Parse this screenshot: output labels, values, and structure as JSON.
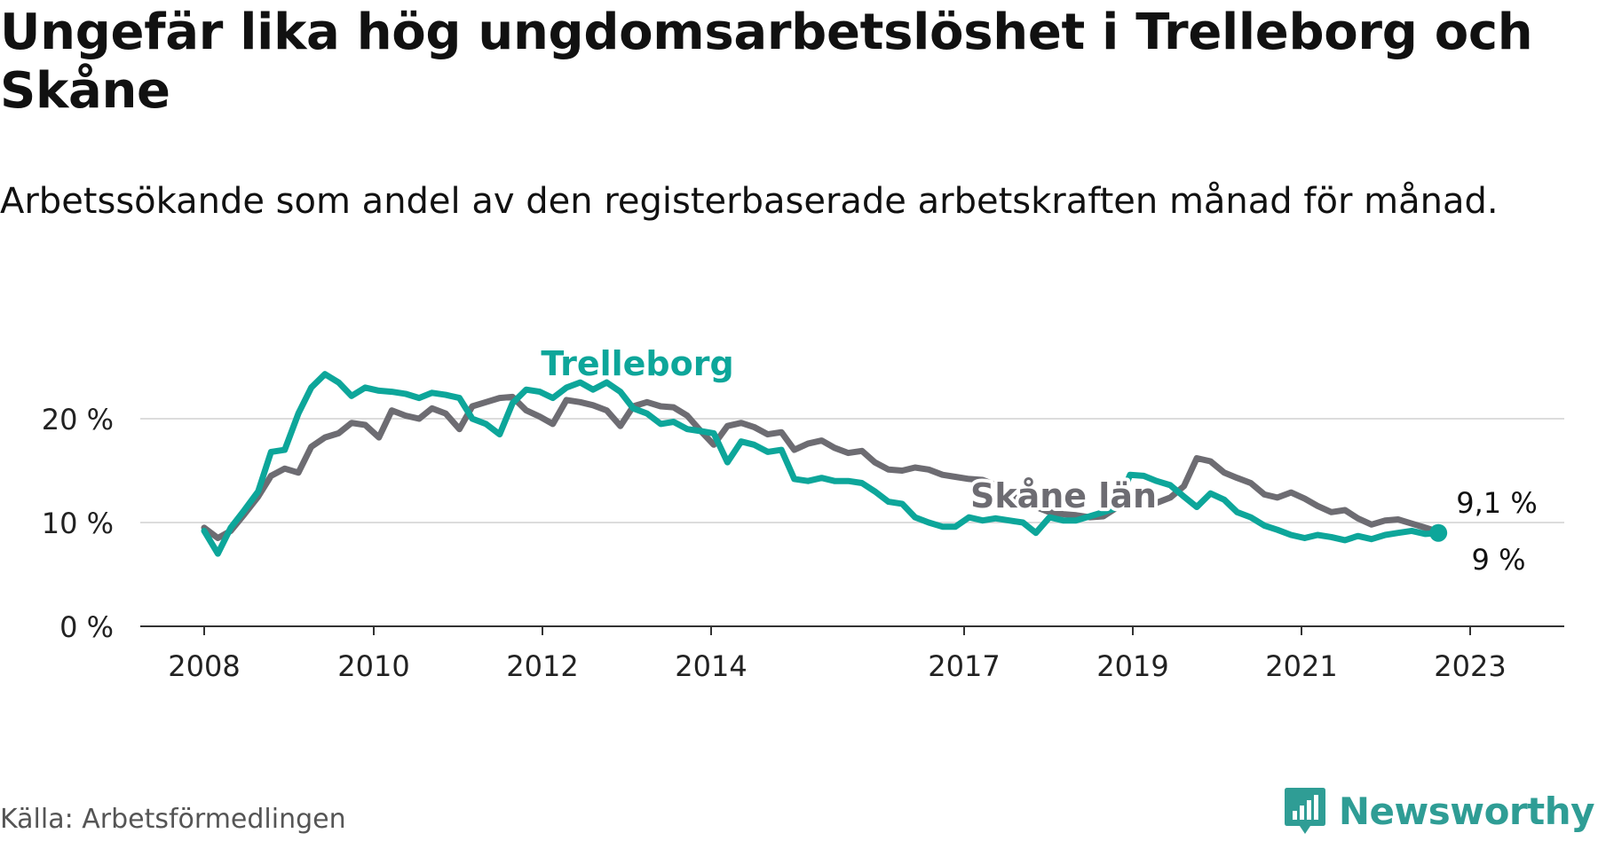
{
  "title": "Ungefär lika hög ungdomsarbetslöshet i Trelleborg och Skåne",
  "subtitle": "Arbetssökande som andel av den registerbaserade arbetskraften månad för månad.",
  "source": "Källa: Arbetsförmedlingen",
  "brand": {
    "name": "Newsworthy",
    "icon": "bar-chart-badge-icon",
    "color": "#2f9d95"
  },
  "chart_data": {
    "type": "line",
    "title": "Ungefär lika hög ungdomsarbetslöshet i Trelleborg och Skåne",
    "xlabel": "",
    "ylabel": "",
    "x_tick_labels": [
      "2008",
      "2010",
      "2012",
      "2014",
      "2017",
      "2019",
      "2021",
      "2023"
    ],
    "y_ticks": [
      0,
      10,
      20
    ],
    "y_tick_labels": [
      "0 %",
      "10 %",
      "20 %"
    ],
    "ylim": [
      0,
      27
    ],
    "xlim": [
      2008.0,
      2024.1
    ],
    "grid": true,
    "series": [
      {
        "name": "Skåne län",
        "label": "Skåne län",
        "color": "#6d6c72",
        "last_label": "9,1 %",
        "x": [
          2008.0,
          2008.17,
          2008.33,
          2008.5,
          2008.67,
          2008.83,
          2009.0,
          2009.17,
          2009.33,
          2009.5,
          2009.67,
          2009.83,
          2010.0,
          2010.17,
          2010.33,
          2010.5,
          2010.67,
          2010.83,
          2011.0,
          2011.17,
          2011.33,
          2011.5,
          2011.67,
          2011.83,
          2012.0,
          2012.17,
          2012.33,
          2012.5,
          2012.67,
          2012.83,
          2013.0,
          2013.17,
          2013.33,
          2013.5,
          2013.67,
          2013.83,
          2014.0,
          2014.17,
          2014.33,
          2014.5,
          2014.67,
          2014.83,
          2015.0,
          2015.17,
          2015.33,
          2015.5,
          2015.67,
          2015.83,
          2016.0,
          2016.17,
          2016.33,
          2016.5,
          2016.67,
          2016.83,
          2017.0,
          2017.17,
          2017.33,
          2017.5,
          2017.67,
          2017.83,
          2018.0,
          2018.17,
          2018.33,
          2018.5,
          2018.67,
          2018.83,
          2019.0,
          2019.17,
          2019.33,
          2019.5,
          2019.67,
          2019.83,
          2020.0,
          2020.17,
          2020.33,
          2020.5,
          2020.67,
          2020.83,
          2021.0,
          2021.17,
          2021.33,
          2021.5,
          2021.67,
          2021.83,
          2022.0,
          2022.17,
          2022.33,
          2022.5,
          2022.67,
          2022.83,
          2023.0,
          2023.17,
          2023.33
        ],
        "values": [
          9.5,
          8.5,
          9.2,
          10.8,
          12.5,
          14.5,
          15.2,
          14.8,
          17.3,
          18.2,
          18.6,
          19.6,
          19.4,
          18.2,
          20.8,
          20.3,
          20.0,
          21.0,
          20.5,
          19.0,
          21.2,
          21.6,
          22.0,
          22.1,
          20.8,
          20.2,
          19.5,
          21.8,
          21.6,
          21.3,
          20.8,
          19.3,
          21.2,
          21.6,
          21.2,
          21.1,
          20.3,
          18.8,
          17.5,
          19.3,
          19.6,
          19.2,
          18.5,
          18.7,
          17.0,
          17.6,
          17.9,
          17.2,
          16.7,
          16.9,
          15.8,
          15.1,
          15.0,
          15.3,
          15.1,
          14.6,
          14.4,
          14.2,
          14.1,
          13.6,
          12.8,
          12.0,
          11.5,
          11.0,
          10.8,
          10.7,
          10.5,
          10.6,
          11.4,
          12.0,
          11.8,
          11.9,
          12.4,
          13.5,
          16.2,
          15.9,
          14.8,
          14.3,
          13.8,
          12.7,
          12.4,
          12.9,
          12.3,
          11.6,
          11.0,
          11.2,
          10.4,
          9.8,
          10.2,
          10.3,
          9.9,
          9.5,
          9.1
        ]
      },
      {
        "name": "Trelleborg",
        "label": "Trelleborg",
        "color": "#0da69a",
        "last_label": "9 %",
        "x": [
          2008.0,
          2008.17,
          2008.33,
          2008.5,
          2008.67,
          2008.83,
          2009.0,
          2009.17,
          2009.33,
          2009.5,
          2009.67,
          2009.83,
          2010.0,
          2010.17,
          2010.33,
          2010.5,
          2010.67,
          2010.83,
          2011.0,
          2011.17,
          2011.33,
          2011.5,
          2011.67,
          2011.83,
          2012.0,
          2012.17,
          2012.33,
          2012.5,
          2012.67,
          2012.83,
          2013.0,
          2013.17,
          2013.33,
          2013.5,
          2013.67,
          2013.83,
          2014.0,
          2014.17,
          2014.33,
          2014.5,
          2014.67,
          2014.83,
          2015.0,
          2015.17,
          2015.33,
          2015.5,
          2015.67,
          2015.83,
          2016.0,
          2016.17,
          2016.33,
          2016.5,
          2016.67,
          2016.83,
          2017.0,
          2017.17,
          2017.33,
          2017.5,
          2017.67,
          2017.83,
          2018.0,
          2018.17,
          2018.33,
          2018.5,
          2018.67,
          2018.83,
          2019.0,
          2019.17,
          2019.33,
          2019.5,
          2019.67,
          2019.83,
          2020.0,
          2020.17,
          2020.33,
          2020.5,
          2020.67,
          2020.83,
          2021.0,
          2021.17,
          2021.33,
          2021.5,
          2021.67,
          2021.83,
          2022.0,
          2022.17,
          2022.33,
          2022.5,
          2022.67,
          2022.83,
          2023.0,
          2023.17,
          2023.33
        ],
        "values": [
          9.2,
          7.0,
          9.5,
          11.2,
          13.0,
          16.8,
          17.0,
          20.5,
          23.0,
          24.3,
          23.5,
          22.2,
          23.0,
          22.7,
          22.6,
          22.4,
          22.0,
          22.5,
          22.3,
          22.0,
          20.0,
          19.5,
          18.5,
          21.5,
          22.8,
          22.6,
          22.0,
          23.0,
          23.5,
          22.8,
          23.5,
          22.6,
          21.0,
          20.5,
          19.5,
          19.7,
          19.0,
          18.8,
          18.6,
          15.8,
          17.8,
          17.5,
          16.8,
          17.0,
          14.2,
          14.0,
          14.3,
          14.0,
          14.0,
          13.8,
          13.0,
          12.0,
          11.8,
          10.5,
          10.0,
          9.6,
          9.6,
          10.5,
          10.2,
          10.4,
          10.2,
          10.0,
          9.0,
          10.5,
          10.2,
          10.2,
          10.6,
          11.0,
          11.4,
          14.6,
          14.5,
          14.0,
          13.6,
          12.5,
          11.5,
          12.8,
          12.2,
          11.0,
          10.5,
          9.7,
          9.3,
          8.8,
          8.5,
          8.8,
          8.6,
          8.3,
          8.7,
          8.4,
          8.8,
          9.0,
          9.2,
          8.9,
          9.0
        ]
      }
    ]
  }
}
